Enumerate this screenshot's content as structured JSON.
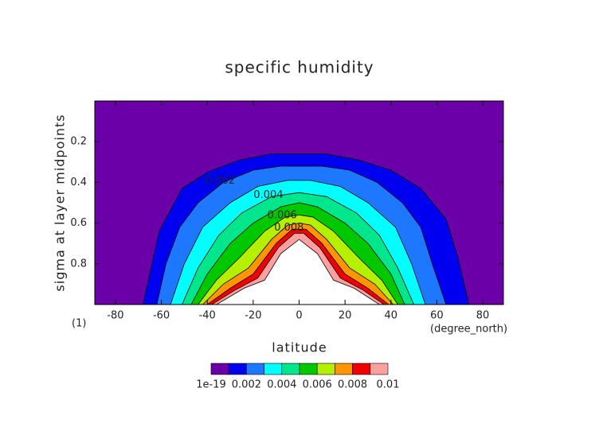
{
  "chart_data": {
    "type": "contour",
    "title": "specific humidity",
    "x_label": "latitude",
    "y_label": "sigma at layer midpoints",
    "x_units": "(degree_north)",
    "y_units": "(1)",
    "xlim": [
      -89,
      89
    ],
    "ylim": [
      0,
      1
    ],
    "y_inverted": true,
    "xticks": [
      -80,
      -60,
      -40,
      -20,
      0,
      20,
      40,
      60,
      80
    ],
    "yticks": [
      0.2,
      0.4,
      0.6,
      0.8
    ],
    "base_color": "#6c00a8",
    "over_color": "#ffffff",
    "contours": [
      {
        "level": 0.001,
        "color": "#0000f0",
        "labeled": false,
        "x": [
          -68,
          -61,
          -51,
          -40,
          -26,
          -12,
          0,
          12,
          26,
          40,
          53,
          64,
          69,
          74
        ],
        "y": [
          1,
          0.64,
          0.43,
          0.35,
          0.29,
          0.26,
          0.26,
          0.26,
          0.29,
          0.34,
          0.43,
          0.58,
          0.76,
          1
        ]
      },
      {
        "level": 0.002,
        "color": "#1e78ff",
        "labeled": true,
        "x": [
          -62,
          -58,
          -52,
          -44,
          -33,
          -20,
          -8,
          0,
          10,
          22,
          34,
          45,
          53,
          58,
          64
        ],
        "y": [
          1,
          0.8,
          0.62,
          0.5,
          0.4,
          0.34,
          0.32,
          0.32,
          0.32,
          0.34,
          0.4,
          0.5,
          0.62,
          0.8,
          1
        ]
      },
      {
        "level": 0.003,
        "color": "#00ffff",
        "labeled": false,
        "x": [
          -56,
          -50,
          -42,
          -30,
          -18,
          -5,
          5,
          18,
          30,
          42,
          49,
          55
        ],
        "y": [
          1,
          0.8,
          0.62,
          0.5,
          0.42,
          0.39,
          0.39,
          0.42,
          0.5,
          0.62,
          0.8,
          1
        ]
      },
      {
        "level": 0.004,
        "color": "#00e68c",
        "labeled": true,
        "x": [
          -51,
          -44,
          -35,
          -25,
          -12,
          0,
          12,
          25,
          35,
          43,
          50
        ],
        "y": [
          1,
          0.82,
          0.66,
          0.55,
          0.47,
          0.45,
          0.47,
          0.55,
          0.66,
          0.82,
          1
        ]
      },
      {
        "level": 0.005,
        "color": "#00c800",
        "labeled": false,
        "x": [
          -47,
          -40,
          -30,
          -20,
          -8,
          0,
          8,
          20,
          30,
          40,
          46
        ],
        "y": [
          1,
          0.85,
          0.7,
          0.6,
          0.52,
          0.5,
          0.52,
          0.6,
          0.7,
          0.85,
          1
        ]
      },
      {
        "level": 0.006,
        "color": "#b4f000",
        "labeled": true,
        "x": [
          -44,
          -36,
          -26,
          -15,
          -6,
          0,
          6,
          15,
          26,
          36,
          43
        ],
        "y": [
          1,
          0.88,
          0.77,
          0.64,
          0.57,
          0.56,
          0.57,
          0.64,
          0.77,
          0.88,
          1
        ]
      },
      {
        "level": 0.007,
        "color": "#ff9600",
        "labeled": false,
        "x": [
          -42,
          -33,
          -22,
          -12,
          -5,
          0,
          5,
          12,
          22,
          33,
          41
        ],
        "y": [
          1,
          0.9,
          0.82,
          0.68,
          0.61,
          0.6,
          0.61,
          0.68,
          0.82,
          0.9,
          1
        ]
      },
      {
        "level": 0.008,
        "color": "#f00000",
        "labeled": true,
        "x": [
          -40,
          -30,
          -20,
          -10,
          -3,
          3,
          10,
          20,
          30,
          39
        ],
        "y": [
          1,
          0.92,
          0.85,
          0.7,
          0.63,
          0.63,
          0.7,
          0.85,
          0.92,
          1
        ]
      },
      {
        "level": 0.009,
        "color": "#ffa0a0",
        "labeled": false,
        "x": [
          -38,
          -28,
          -18,
          -9,
          -2,
          2,
          9,
          18,
          28,
          37
        ],
        "y": [
          1,
          0.93,
          0.87,
          0.72,
          0.65,
          0.65,
          0.72,
          0.87,
          0.93,
          1
        ]
      },
      {
        "level": 0.01,
        "color": "#ffffff",
        "labeled": false,
        "x": [
          -36,
          -24,
          -15,
          -8,
          0,
          8,
          15,
          24,
          35
        ],
        "y": [
          1,
          0.92,
          0.88,
          0.75,
          0.68,
          0.75,
          0.88,
          0.92,
          1
        ]
      }
    ],
    "colorbar_ticks": [
      {
        "value": 1e-19,
        "label": "1e-19"
      },
      0.002,
      0.004,
      0.006,
      0.008,
      0.01
    ]
  }
}
